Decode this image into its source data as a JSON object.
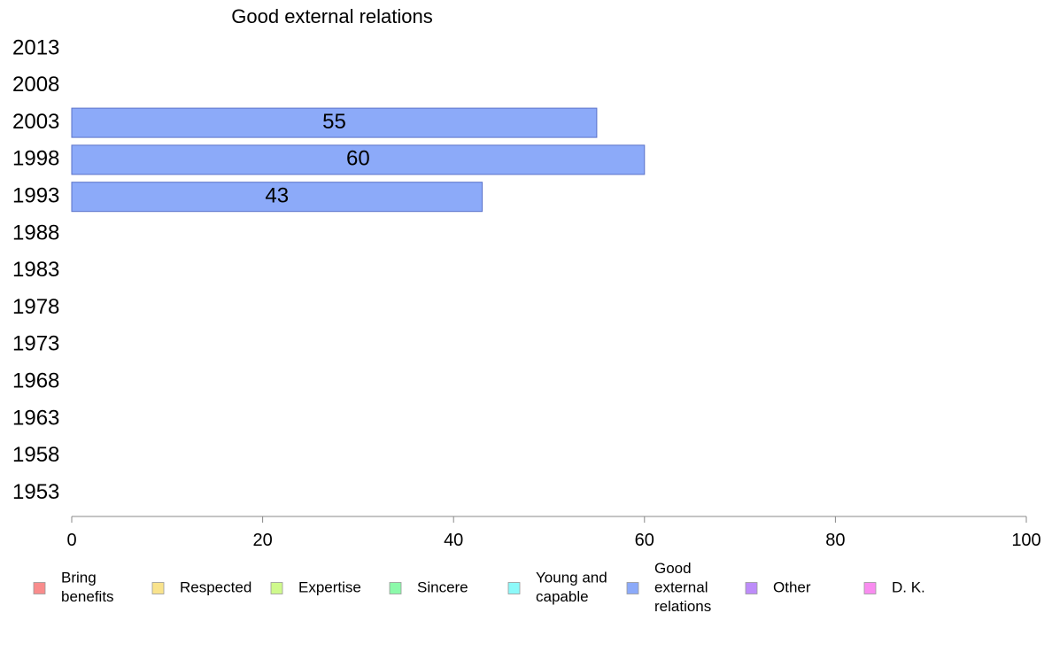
{
  "chart_data": {
    "type": "bar",
    "orientation": "horizontal",
    "title": "Good external relations",
    "categories": [
      "2013",
      "2008",
      "2003",
      "1998",
      "1993",
      "1988",
      "1983",
      "1978",
      "1973",
      "1968",
      "1963",
      "1958",
      "1953"
    ],
    "series": [
      {
        "name": "Good external relations",
        "values": [
          null,
          null,
          55,
          60,
          43,
          null,
          null,
          null,
          null,
          null,
          null,
          null,
          null
        ]
      }
    ],
    "xlim": [
      0,
      100
    ],
    "xticks": [
      0,
      20,
      40,
      60,
      80,
      100
    ],
    "grid": false,
    "legend_position": "bottom",
    "legend": [
      {
        "lines": [
          "Bring",
          "benefits"
        ],
        "color": "#f98c8c"
      },
      {
        "lines": [
          "Respected"
        ],
        "color": "#f9e38c"
      },
      {
        "lines": [
          "Expertise"
        ],
        "color": "#cff98c"
      },
      {
        "lines": [
          "Sincere"
        ],
        "color": "#8cf9aa"
      },
      {
        "lines": [
          "Young and",
          "capable"
        ],
        "color": "#8cf9f9"
      },
      {
        "lines": [
          "Good",
          "external",
          "relations"
        ],
        "color": "#8caaf9"
      },
      {
        "lines": [
          "Other"
        ],
        "color": "#bd8cf9"
      },
      {
        "lines": [
          "D. K."
        ],
        "color": "#f98cf0"
      }
    ],
    "bar_color": "#8caaf9",
    "bar_edge_color": "#5a72c9"
  }
}
